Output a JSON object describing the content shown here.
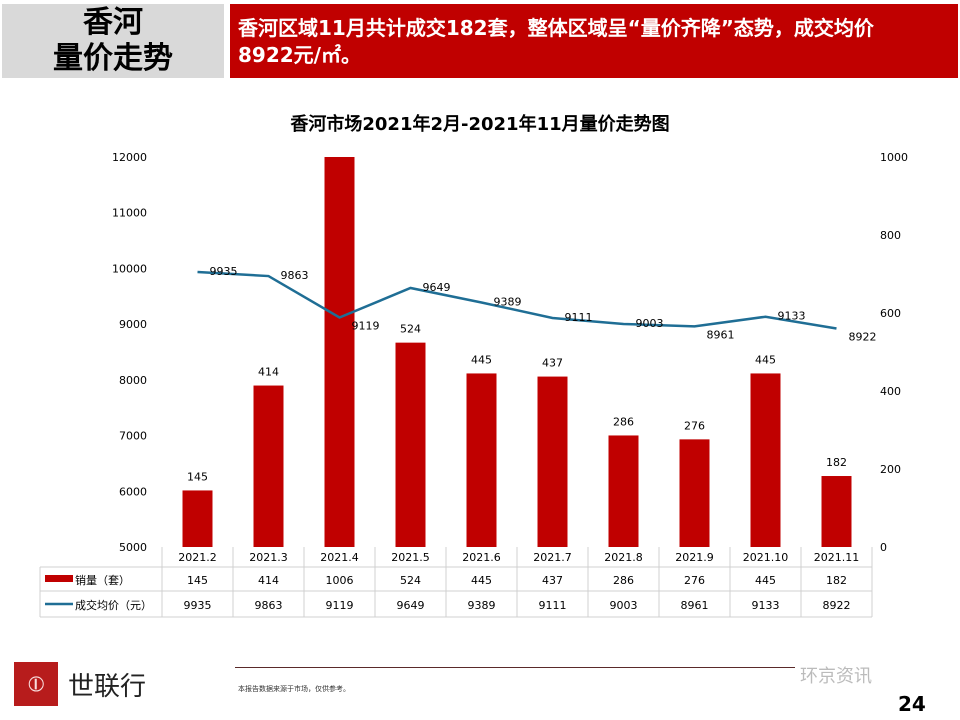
{
  "header": {
    "title_line1": "香河",
    "title_line2": "量价走势",
    "summary_line1": "香河区域11月共计成交182套，整体区域呈“量价齐降”态势，成交均价",
    "summary_line2": "8922元/㎡。"
  },
  "chart_data": {
    "type": "bar+line",
    "title": "香河市场2021年2月-2021年11月量价走势图",
    "categories": [
      "2021.2",
      "2021.3",
      "2021.4",
      "2021.5",
      "2021.6",
      "2021.7",
      "2021.8",
      "2021.9",
      "2021.10",
      "2021.11"
    ],
    "series": [
      {
        "name": "销量（套）",
        "type": "bar",
        "axis": "right",
        "color": "#c00000",
        "values": [
          145,
          414,
          1006,
          524,
          445,
          437,
          286,
          276,
          445,
          182
        ]
      },
      {
        "name": "成交均价（元）",
        "type": "line",
        "axis": "left",
        "color": "#1f6e95",
        "values": [
          9935,
          9863,
          9119,
          9649,
          9389,
          9111,
          9003,
          8961,
          9133,
          8922
        ]
      }
    ],
    "left_axis": {
      "range": [
        5000,
        12000
      ],
      "ticks": [
        "5000",
        "6000",
        "7000",
        "8000",
        "9000",
        "10000",
        "11000",
        "12000"
      ]
    },
    "right_axis": {
      "range": [
        0,
        1000
      ],
      "ticks": [
        "0",
        "200",
        "400",
        "600",
        "800",
        "1000"
      ]
    },
    "grid": false,
    "legend": "data-table"
  },
  "footer": {
    "brand": "世联行",
    "note": "本报告数据来源于市场，仅供参考。",
    "watermark": "环京资讯",
    "page": "24"
  }
}
